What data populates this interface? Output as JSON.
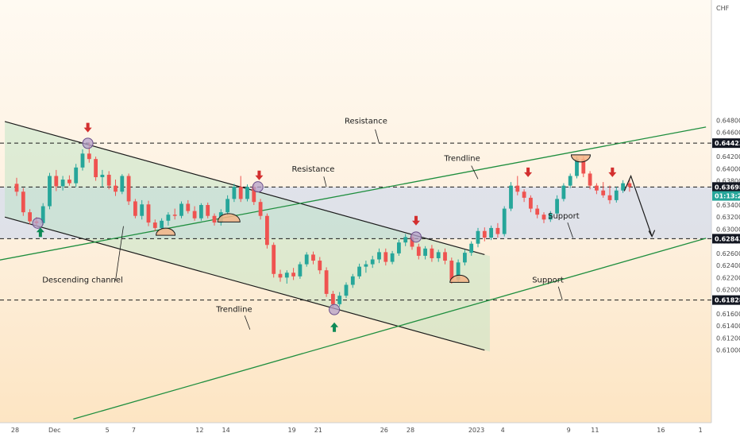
{
  "chart_data": {
    "type": "candlestick",
    "currency_label": "CHF",
    "y_range": [
      0.598,
      0.6679
    ],
    "y_ticks": [
      "0.64800",
      "0.64600",
      "0.64400",
      "0.64200",
      "0.64000",
      "0.63800",
      "0.63600",
      "0.63400",
      "0.63200",
      "0.63000",
      "0.62800",
      "0.62600",
      "0.62400",
      "0.62200",
      "0.62000",
      "0.61800",
      "0.61600",
      "0.61400",
      "0.61200",
      "0.61000"
    ],
    "x_ticks": [
      {
        "label": "28",
        "day": 0
      },
      {
        "label": "Dec",
        "day": 3
      },
      {
        "label": "5",
        "day": 7
      },
      {
        "label": "7",
        "day": 9
      },
      {
        "label": "12",
        "day": 14
      },
      {
        "label": "14",
        "day": 16
      },
      {
        "label": "19",
        "day": 21
      },
      {
        "label": "21",
        "day": 23
      },
      {
        "label": "26",
        "day": 28
      },
      {
        "label": "28",
        "day": 30
      },
      {
        "label": "2023",
        "day": 35
      },
      {
        "label": "4",
        "day": 37
      },
      {
        "label": "9",
        "day": 42
      },
      {
        "label": "11",
        "day": 44
      },
      {
        "label": "16",
        "day": 49
      },
      {
        "label": "1",
        "day": 52
      }
    ],
    "price_tags": [
      {
        "label": "0.64423",
        "value": 0.64423,
        "color": "#131722"
      },
      {
        "label": "0.63698",
        "value": 0.63698,
        "color": "#131722"
      },
      {
        "label": "01:13:22",
        "value": 0.6355,
        "color": "#26a69a"
      },
      {
        "label": "0.62843",
        "value": 0.62843,
        "color": "#131722"
      },
      {
        "label": "0.61828",
        "value": 0.61828,
        "color": "#131722"
      }
    ],
    "horizontal_levels": [
      0.64423,
      0.63698,
      0.62843,
      0.61828
    ],
    "resistance_zone": [
      0.62843,
      0.63698
    ],
    "annotations": [
      {
        "text": "Resistance",
        "day": 26.5,
        "value": 0.6475
      },
      {
        "text": "Resistance",
        "day": 22.5,
        "value": 0.6395
      },
      {
        "text": "Trendline",
        "day": 33.8,
        "value": 0.6413
      },
      {
        "text": "Support",
        "day": 41.5,
        "value": 0.6318
      },
      {
        "text": "Descending channel",
        "day": 5,
        "value": 0.6212
      },
      {
        "text": "Support",
        "day": 40.3,
        "value": 0.6212
      },
      {
        "text": "Trendline",
        "day": 16.5,
        "value": 0.6163
      }
    ],
    "arrows_down": [
      {
        "day": 5.4,
        "value": 0.6468
      },
      {
        "day": 18.4,
        "value": 0.6389
      },
      {
        "day": 30.3,
        "value": 0.6314
      },
      {
        "day": 38.8,
        "value": 0.6394
      },
      {
        "day": 45.2,
        "value": 0.6394
      }
    ],
    "arrows_up": [
      {
        "day": 1.8,
        "value": 0.6295
      },
      {
        "day": 24.1,
        "value": 0.6138
      }
    ],
    "candles": [
      {
        "d": 0.0,
        "o": 0.6375,
        "h": 0.6385,
        "l": 0.6355,
        "c": 0.6362
      },
      {
        "d": 0.5,
        "o": 0.6362,
        "h": 0.6368,
        "l": 0.6322,
        "c": 0.6328
      },
      {
        "d": 1.0,
        "o": 0.6328,
        "h": 0.6333,
        "l": 0.6308,
        "c": 0.6313
      },
      {
        "d": 1.5,
        "o": 0.6313,
        "h": 0.632,
        "l": 0.6305,
        "c": 0.631
      },
      {
        "d": 2.0,
        "o": 0.631,
        "h": 0.6343,
        "l": 0.6307,
        "c": 0.6338
      },
      {
        "d": 2.5,
        "o": 0.6338,
        "h": 0.6393,
        "l": 0.6333,
        "c": 0.6388
      },
      {
        "d": 3.0,
        "o": 0.6388,
        "h": 0.6398,
        "l": 0.6363,
        "c": 0.6371
      },
      {
        "d": 3.5,
        "o": 0.6371,
        "h": 0.6388,
        "l": 0.6364,
        "c": 0.6382
      },
      {
        "d": 4.0,
        "o": 0.6382,
        "h": 0.6389,
        "l": 0.6372,
        "c": 0.6376
      },
      {
        "d": 4.5,
        "o": 0.6376,
        "h": 0.6408,
        "l": 0.637,
        "c": 0.6402
      },
      {
        "d": 5.0,
        "o": 0.6402,
        "h": 0.6432,
        "l": 0.6397,
        "c": 0.6425
      },
      {
        "d": 5.5,
        "o": 0.6425,
        "h": 0.6443,
        "l": 0.641,
        "c": 0.6416
      },
      {
        "d": 6.0,
        "o": 0.6416,
        "h": 0.642,
        "l": 0.638,
        "c": 0.6386
      },
      {
        "d": 6.5,
        "o": 0.6386,
        "h": 0.6398,
        "l": 0.637,
        "c": 0.639
      },
      {
        "d": 7.0,
        "o": 0.639,
        "h": 0.6396,
        "l": 0.6366,
        "c": 0.6372
      },
      {
        "d": 7.5,
        "o": 0.6372,
        "h": 0.6382,
        "l": 0.6355,
        "c": 0.6362
      },
      {
        "d": 8.0,
        "o": 0.6362,
        "h": 0.6391,
        "l": 0.6358,
        "c": 0.6388
      },
      {
        "d": 8.5,
        "o": 0.6388,
        "h": 0.6392,
        "l": 0.634,
        "c": 0.6346
      },
      {
        "d": 9.0,
        "o": 0.6346,
        "h": 0.635,
        "l": 0.6318,
        "c": 0.6322
      },
      {
        "d": 9.5,
        "o": 0.6322,
        "h": 0.6348,
        "l": 0.6316,
        "c": 0.6341
      },
      {
        "d": 10.0,
        "o": 0.6341,
        "h": 0.6347,
        "l": 0.6305,
        "c": 0.6311
      },
      {
        "d": 10.5,
        "o": 0.6311,
        "h": 0.6316,
        "l": 0.6297,
        "c": 0.6302
      },
      {
        "d": 11.0,
        "o": 0.6302,
        "h": 0.6318,
        "l": 0.6298,
        "c": 0.6314
      },
      {
        "d": 11.5,
        "o": 0.6314,
        "h": 0.6328,
        "l": 0.6306,
        "c": 0.6324
      },
      {
        "d": 12.0,
        "o": 0.6324,
        "h": 0.6334,
        "l": 0.6316,
        "c": 0.6322
      },
      {
        "d": 12.5,
        "o": 0.6322,
        "h": 0.6346,
        "l": 0.6318,
        "c": 0.6342
      },
      {
        "d": 13.0,
        "o": 0.6342,
        "h": 0.6348,
        "l": 0.6326,
        "c": 0.633
      },
      {
        "d": 13.5,
        "o": 0.633,
        "h": 0.6338,
        "l": 0.6314,
        "c": 0.6318
      },
      {
        "d": 14.0,
        "o": 0.6318,
        "h": 0.6343,
        "l": 0.6314,
        "c": 0.634
      },
      {
        "d": 14.5,
        "o": 0.634,
        "h": 0.6344,
        "l": 0.6318,
        "c": 0.6322
      },
      {
        "d": 15.0,
        "o": 0.6322,
        "h": 0.6326,
        "l": 0.6306,
        "c": 0.6311
      },
      {
        "d": 15.5,
        "o": 0.6311,
        "h": 0.6333,
        "l": 0.6306,
        "c": 0.6328
      },
      {
        "d": 16.0,
        "o": 0.6328,
        "h": 0.6356,
        "l": 0.6323,
        "c": 0.635
      },
      {
        "d": 16.5,
        "o": 0.635,
        "h": 0.6375,
        "l": 0.6345,
        "c": 0.637
      },
      {
        "d": 17.0,
        "o": 0.637,
        "h": 0.6388,
        "l": 0.6345,
        "c": 0.635
      },
      {
        "d": 17.5,
        "o": 0.635,
        "h": 0.6374,
        "l": 0.6346,
        "c": 0.637
      },
      {
        "d": 18.0,
        "o": 0.637,
        "h": 0.6375,
        "l": 0.634,
        "c": 0.6345
      },
      {
        "d": 18.5,
        "o": 0.6345,
        "h": 0.635,
        "l": 0.6316,
        "c": 0.6322
      },
      {
        "d": 19.0,
        "o": 0.6322,
        "h": 0.6326,
        "l": 0.6268,
        "c": 0.6274
      },
      {
        "d": 19.5,
        "o": 0.6274,
        "h": 0.6278,
        "l": 0.622,
        "c": 0.6226
      },
      {
        "d": 20.0,
        "o": 0.6226,
        "h": 0.6233,
        "l": 0.6213,
        "c": 0.622
      },
      {
        "d": 20.5,
        "o": 0.622,
        "h": 0.6232,
        "l": 0.621,
        "c": 0.6228
      },
      {
        "d": 21.0,
        "o": 0.6228,
        "h": 0.6236,
        "l": 0.6216,
        "c": 0.6222
      },
      {
        "d": 21.5,
        "o": 0.6222,
        "h": 0.6246,
        "l": 0.6218,
        "c": 0.6242
      },
      {
        "d": 22.0,
        "o": 0.6242,
        "h": 0.6262,
        "l": 0.6238,
        "c": 0.6258
      },
      {
        "d": 22.5,
        "o": 0.6258,
        "h": 0.6263,
        "l": 0.6242,
        "c": 0.6248
      },
      {
        "d": 23.0,
        "o": 0.6248,
        "h": 0.6254,
        "l": 0.6226,
        "c": 0.6232
      },
      {
        "d": 23.5,
        "o": 0.6232,
        "h": 0.6237,
        "l": 0.6188,
        "c": 0.6193
      },
      {
        "d": 24.0,
        "o": 0.6193,
        "h": 0.6198,
        "l": 0.6168,
        "c": 0.6176
      },
      {
        "d": 24.5,
        "o": 0.6176,
        "h": 0.6196,
        "l": 0.6172,
        "c": 0.619
      },
      {
        "d": 25.0,
        "o": 0.619,
        "h": 0.6212,
        "l": 0.6186,
        "c": 0.6208
      },
      {
        "d": 25.5,
        "o": 0.6208,
        "h": 0.6226,
        "l": 0.6203,
        "c": 0.6222
      },
      {
        "d": 26.0,
        "o": 0.6222,
        "h": 0.6243,
        "l": 0.6218,
        "c": 0.6238
      },
      {
        "d": 26.5,
        "o": 0.6238,
        "h": 0.6248,
        "l": 0.6228,
        "c": 0.6242
      },
      {
        "d": 27.0,
        "o": 0.6242,
        "h": 0.6256,
        "l": 0.6236,
        "c": 0.625
      },
      {
        "d": 27.5,
        "o": 0.625,
        "h": 0.6268,
        "l": 0.6244,
        "c": 0.6262
      },
      {
        "d": 28.0,
        "o": 0.6262,
        "h": 0.6268,
        "l": 0.624,
        "c": 0.6246
      },
      {
        "d": 28.5,
        "o": 0.6246,
        "h": 0.6264,
        "l": 0.6242,
        "c": 0.626
      },
      {
        "d": 29.0,
        "o": 0.626,
        "h": 0.6283,
        "l": 0.6256,
        "c": 0.6278
      },
      {
        "d": 29.5,
        "o": 0.6278,
        "h": 0.6292,
        "l": 0.6272,
        "c": 0.6287
      },
      {
        "d": 30.0,
        "o": 0.6287,
        "h": 0.6293,
        "l": 0.6266,
        "c": 0.6271
      },
      {
        "d": 30.5,
        "o": 0.6271,
        "h": 0.6276,
        "l": 0.625,
        "c": 0.6256
      },
      {
        "d": 31.0,
        "o": 0.6256,
        "h": 0.6272,
        "l": 0.625,
        "c": 0.6268
      },
      {
        "d": 31.5,
        "o": 0.6268,
        "h": 0.6274,
        "l": 0.6246,
        "c": 0.6252
      },
      {
        "d": 32.0,
        "o": 0.6252,
        "h": 0.6266,
        "l": 0.6246,
        "c": 0.6262
      },
      {
        "d": 32.5,
        "o": 0.6262,
        "h": 0.6268,
        "l": 0.6242,
        "c": 0.6248
      },
      {
        "d": 33.0,
        "o": 0.6248,
        "h": 0.6253,
        "l": 0.621,
        "c": 0.6216
      },
      {
        "d": 33.5,
        "o": 0.6216,
        "h": 0.625,
        "l": 0.6212,
        "c": 0.6245
      },
      {
        "d": 34.0,
        "o": 0.6245,
        "h": 0.6266,
        "l": 0.624,
        "c": 0.6261
      },
      {
        "d": 34.5,
        "o": 0.6261,
        "h": 0.628,
        "l": 0.6256,
        "c": 0.6276
      },
      {
        "d": 35.0,
        "o": 0.6276,
        "h": 0.6302,
        "l": 0.627,
        "c": 0.6297
      },
      {
        "d": 35.5,
        "o": 0.6297,
        "h": 0.6303,
        "l": 0.628,
        "c": 0.6286
      },
      {
        "d": 36.0,
        "o": 0.6286,
        "h": 0.6306,
        "l": 0.6282,
        "c": 0.6302
      },
      {
        "d": 36.5,
        "o": 0.6302,
        "h": 0.631,
        "l": 0.6286,
        "c": 0.6292
      },
      {
        "d": 37.0,
        "o": 0.6292,
        "h": 0.6338,
        "l": 0.6288,
        "c": 0.6334
      },
      {
        "d": 37.5,
        "o": 0.6334,
        "h": 0.6378,
        "l": 0.633,
        "c": 0.6372
      },
      {
        "d": 38.0,
        "o": 0.6372,
        "h": 0.6388,
        "l": 0.6356,
        "c": 0.6362
      },
      {
        "d": 38.5,
        "o": 0.6362,
        "h": 0.6366,
        "l": 0.6345,
        "c": 0.6352
      },
      {
        "d": 39.0,
        "o": 0.6352,
        "h": 0.6356,
        "l": 0.6328,
        "c": 0.6334
      },
      {
        "d": 39.5,
        "o": 0.6334,
        "h": 0.634,
        "l": 0.6318,
        "c": 0.6324
      },
      {
        "d": 40.0,
        "o": 0.6324,
        "h": 0.6328,
        "l": 0.631,
        "c": 0.6316
      },
      {
        "d": 40.5,
        "o": 0.6316,
        "h": 0.633,
        "l": 0.6312,
        "c": 0.6326
      },
      {
        "d": 41.0,
        "o": 0.6326,
        "h": 0.6356,
        "l": 0.6322,
        "c": 0.635
      },
      {
        "d": 41.5,
        "o": 0.635,
        "h": 0.6376,
        "l": 0.6346,
        "c": 0.6372
      },
      {
        "d": 42.0,
        "o": 0.6372,
        "h": 0.6392,
        "l": 0.6368,
        "c": 0.6388
      },
      {
        "d": 42.5,
        "o": 0.6388,
        "h": 0.642,
        "l": 0.6384,
        "c": 0.6416
      },
      {
        "d": 43.0,
        "o": 0.6416,
        "h": 0.6421,
        "l": 0.6386,
        "c": 0.6392
      },
      {
        "d": 43.5,
        "o": 0.6392,
        "h": 0.6396,
        "l": 0.6366,
        "c": 0.6372
      },
      {
        "d": 44.0,
        "o": 0.6372,
        "h": 0.6376,
        "l": 0.6358,
        "c": 0.6364
      },
      {
        "d": 44.5,
        "o": 0.6364,
        "h": 0.6378,
        "l": 0.6352,
        "c": 0.6356
      },
      {
        "d": 45.0,
        "o": 0.6356,
        "h": 0.6372,
        "l": 0.6342,
        "c": 0.6348
      },
      {
        "d": 45.5,
        "o": 0.6348,
        "h": 0.637,
        "l": 0.6344,
        "c": 0.6364
      },
      {
        "d": 46.0,
        "o": 0.6364,
        "h": 0.6381,
        "l": 0.636,
        "c": 0.6376
      },
      {
        "d": 46.5,
        "o": 0.6376,
        "h": 0.6382,
        "l": 0.6362,
        "c": 0.637
      }
    ]
  }
}
